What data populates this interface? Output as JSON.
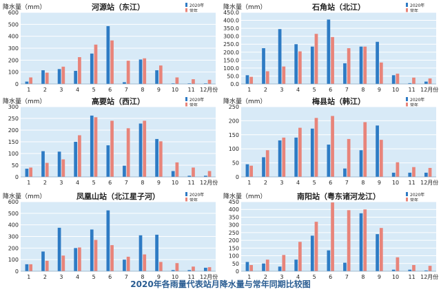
{
  "figure_title": "2020年各雨量代表站月降水量与常年同期比较图",
  "colors": {
    "y2020": "#2e7bc4",
    "normal": "#e8847a",
    "plot_bg": "#d8eaf7",
    "grid": "#ffffff",
    "text": "#222222"
  },
  "chart_data": [
    {
      "type": "bar",
      "title": "河源站（东江）",
      "ylabel": "降水量（mm）",
      "categories": [
        "1",
        "2",
        "3",
        "4",
        "5",
        "6",
        "7",
        "8",
        "9",
        "10",
        "11",
        "12月份"
      ],
      "ylim": [
        0,
        600
      ],
      "yticks": [
        "0",
        "100",
        "200",
        "300",
        "400",
        "500",
        "600"
      ],
      "legend": "top-right",
      "series": [
        {
          "name": "2020年",
          "values": [
            20,
            115,
            125,
            110,
            255,
            485,
            15,
            205,
            115,
            5,
            5,
            5
          ]
        },
        {
          "name": "常年",
          "values": [
            55,
            95,
            145,
            225,
            330,
            365,
            195,
            215,
            155,
            55,
            40,
            35
          ]
        }
      ]
    },
    {
      "type": "bar",
      "title": "石角站（北江）",
      "ylabel": "降水量（mm）",
      "categories": [
        "1",
        "2",
        "3",
        "4",
        "5",
        "6",
        "7",
        "8",
        "9",
        "10",
        "11",
        "12月份"
      ],
      "ylim": [
        0,
        450
      ],
      "yticks": [
        "0.0",
        "50.0",
        "100.0",
        "150.0",
        "200.0",
        "250.0",
        "300.0",
        "350.0",
        "400.0",
        "450.0"
      ],
      "legend": "top-right",
      "series": [
        {
          "name": "2020年",
          "values": [
            55,
            225,
            345,
            250,
            235,
            405,
            130,
            235,
            265,
            55,
            5,
            15
          ]
        },
        {
          "name": "常年",
          "values": [
            45,
            80,
            110,
            205,
            315,
            295,
            225,
            235,
            135,
            65,
            40,
            35
          ]
        }
      ]
    },
    {
      "type": "bar",
      "title": "高要站（西江）",
      "ylabel": "降水量（mm）",
      "categories": [
        "1",
        "2",
        "3",
        "4",
        "5",
        "6",
        "7",
        "8",
        "9",
        "10",
        "11",
        "12月份"
      ],
      "ylim": [
        0,
        300
      ],
      "yticks": [
        "0",
        "50",
        "100",
        "150",
        "200",
        "250",
        "300"
      ],
      "legend": "top-right",
      "series": [
        {
          "name": "2020年",
          "values": [
            35,
            110,
            108,
            150,
            262,
            135,
            48,
            228,
            162,
            25,
            5,
            5
          ]
        },
        {
          "name": "常年",
          "values": [
            40,
            60,
            75,
            178,
            255,
            240,
            208,
            240,
            152,
            62,
            40,
            25
          ]
        }
      ]
    },
    {
      "type": "bar",
      "title": "梅县站（韩江）",
      "ylabel": "降水量（mm）",
      "categories": [
        "1",
        "2",
        "3",
        "4",
        "5",
        "6",
        "7",
        "8",
        "9",
        "10",
        "11",
        "12月份"
      ],
      "ylim": [
        0,
        250
      ],
      "yticks": [
        "0",
        "50",
        "100",
        "150",
        "200",
        "250"
      ],
      "legend": "top-right",
      "series": [
        {
          "name": "2020年",
          "values": [
            45,
            70,
            130,
            140,
            172,
            115,
            30,
            95,
            183,
            15,
            15,
            15
          ]
        },
        {
          "name": "常年",
          "values": [
            40,
            95,
            140,
            175,
            210,
            217,
            135,
            195,
            132,
            52,
            35,
            32
          ]
        }
      ]
    },
    {
      "type": "bar",
      "title": "凤凰山站（北江星子河）",
      "ylabel": "降水量（mm）",
      "categories": [
        "1",
        "2",
        "3",
        "4",
        "5",
        "6",
        "7",
        "8",
        "9",
        "10",
        "11",
        "12月份"
      ],
      "ylim": [
        0,
        600
      ],
      "yticks": [
        "0",
        "100",
        "200",
        "300",
        "400",
        "500",
        "600"
      ],
      "legend": "top-right",
      "series": [
        {
          "name": "2020年",
          "values": [
            60,
            170,
            375,
            200,
            360,
            525,
            100,
            310,
            315,
            10,
            10,
            30
          ]
        },
        {
          "name": "常年",
          "values": [
            60,
            90,
            135,
            205,
            270,
            225,
            125,
            145,
            80,
            70,
            40,
            35
          ]
        }
      ]
    },
    {
      "type": "bar",
      "title": "南阳站（粤东诸河龙江）",
      "ylabel": "降水量（mm）",
      "categories": [
        "1",
        "2",
        "3",
        "4",
        "5",
        "6",
        "7",
        "8",
        "9",
        "10",
        "11",
        "12月份"
      ],
      "ylim": [
        0,
        450
      ],
      "yticks": [
        "0",
        "50",
        "100",
        "150",
        "200",
        "250",
        "300",
        "350",
        "400",
        "450"
      ],
      "legend": "top-right",
      "series": [
        {
          "name": "2020年",
          "values": [
            60,
            50,
            30,
            75,
            230,
            135,
            55,
            375,
            240,
            10,
            10,
            5
          ]
        },
        {
          "name": "常年",
          "values": [
            40,
            75,
            105,
            190,
            320,
            445,
            395,
            400,
            280,
            90,
            40,
            35
          ]
        }
      ]
    }
  ]
}
